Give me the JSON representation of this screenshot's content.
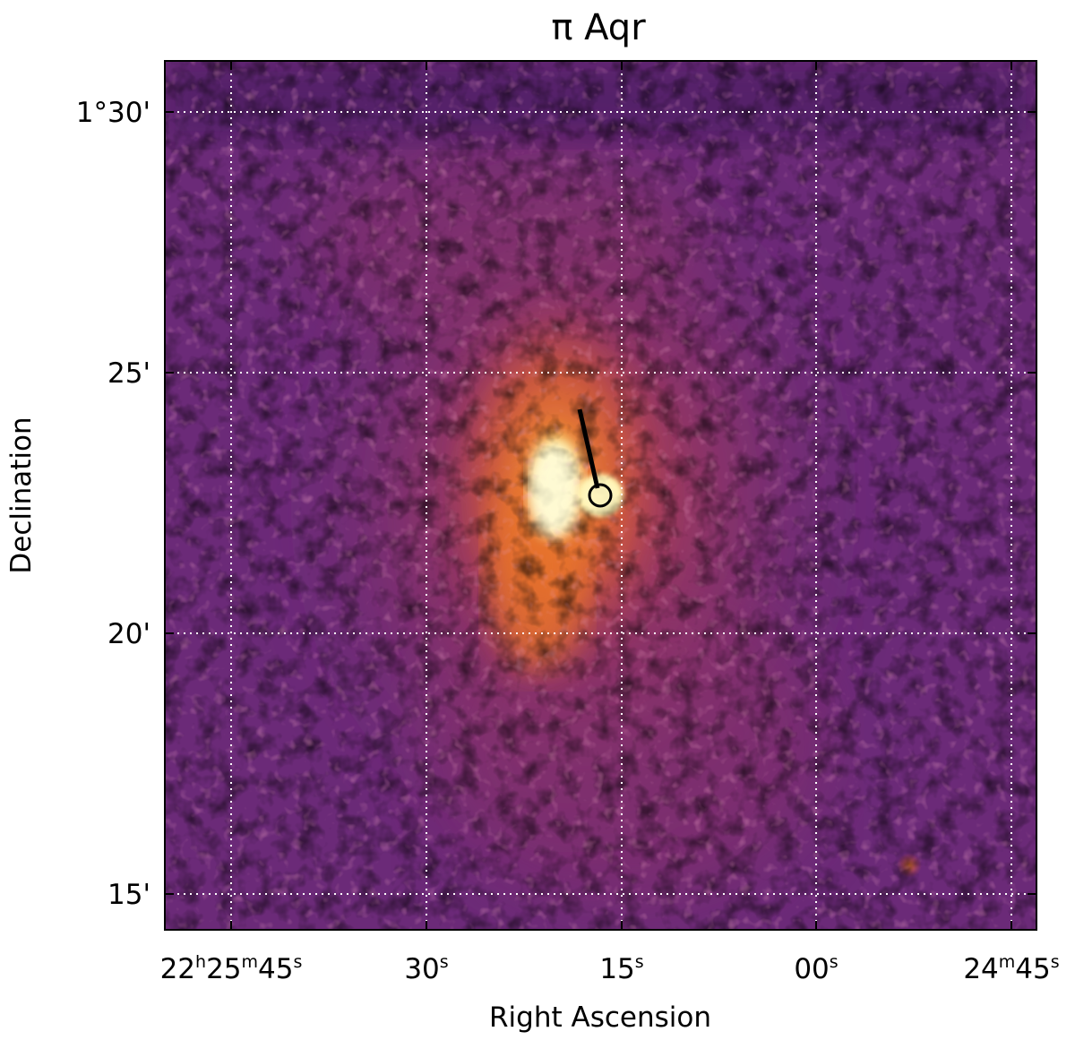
{
  "title": "π Aqr",
  "axes": {
    "xlabel": "Right Ascension",
    "ylabel": "Declination",
    "x_ticks": [
      {
        "main": "22",
        "u1": "h",
        "m": "25",
        "u2": "m",
        "s": "45",
        "u3": "s"
      },
      {
        "main": "30",
        "u1": "s"
      },
      {
        "main": "15",
        "u1": "s"
      },
      {
        "main": "00",
        "u1": "s"
      },
      {
        "main": "24",
        "u1": "m",
        "s": "45",
        "u2": "s"
      }
    ],
    "y_ticks": [
      "1°30'",
      "25'",
      "20'",
      "15'"
    ],
    "grid": true,
    "grid_style": "dotted",
    "grid_color": "#ffffff"
  },
  "image": {
    "colormap": "inferno",
    "background_color": "#6b2a78",
    "peak_color": "#fff7c0"
  },
  "overlay": {
    "marker": "circle",
    "line_color": "#000000",
    "direction": "north-northwest"
  }
}
